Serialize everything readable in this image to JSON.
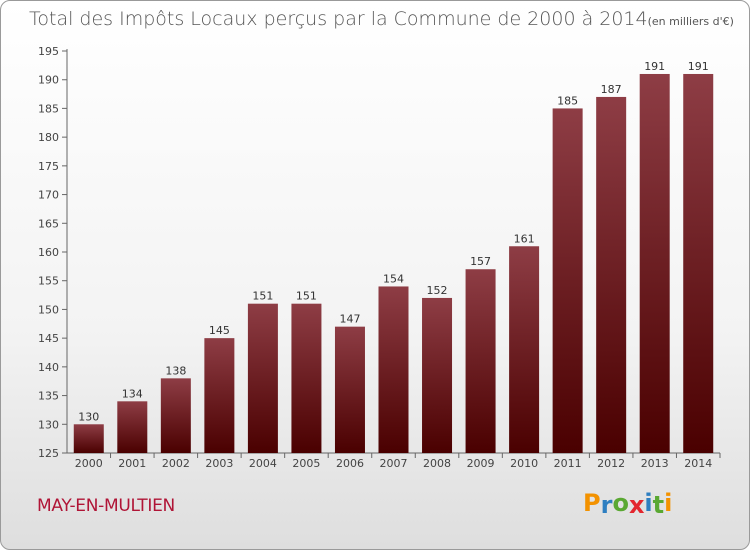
{
  "title": {
    "main": "Total des Impôts Locaux perçus par la Commune de 2000 à 2014",
    "unit": "(en milliers d'€)"
  },
  "commune": "MAY-EN-MULTIEN",
  "brand": {
    "letters": [
      "P",
      "r",
      "o",
      "x",
      "i",
      "t",
      "i"
    ],
    "colors": [
      "#f39200",
      "#2e7fc1",
      "#5aa832",
      "#e3262e",
      "#2e7fc1",
      "#5aa832",
      "#f39200"
    ]
  },
  "colors": {
    "bar_top": "#8e3d45",
    "bar_bottom": "#4a0000",
    "title_text": "#555555",
    "commune_text": "#b01436"
  },
  "chart_data": {
    "type": "bar",
    "categories": [
      "2000",
      "2001",
      "2002",
      "2003",
      "2004",
      "2005",
      "2006",
      "2007",
      "2008",
      "2009",
      "2010",
      "2011",
      "2012",
      "2013",
      "2014"
    ],
    "values": [
      130,
      134,
      138,
      145,
      151,
      151,
      147,
      154,
      152,
      157,
      161,
      185,
      187,
      191,
      191
    ],
    "data_labels": [
      "130",
      "134",
      "138",
      "145",
      "151",
      "151",
      "147",
      "154",
      "152",
      "157",
      "161",
      "185",
      "187",
      "191",
      "191"
    ],
    "title": "Total des Impôts Locaux perçus par la Commune de 2000 à 2014",
    "xlabel": "",
    "ylabel": "",
    "ylim": [
      125,
      195
    ],
    "yticks": [
      125,
      130,
      135,
      140,
      145,
      150,
      155,
      160,
      165,
      170,
      175,
      180,
      185,
      190,
      195
    ],
    "grid": false,
    "legend": "none"
  }
}
